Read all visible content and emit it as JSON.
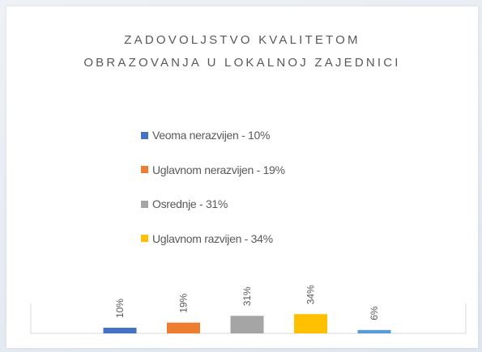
{
  "chart_data": {
    "type": "bar",
    "title": "ZADOVOLJSTVO KVALITETOM OBRAZOVANJA U LOKALNOJ ZAJEDNICI",
    "categories": [
      "Veoma nerazvijen - 10%",
      "Uglavnom nerazvijen - 19%",
      "Osrednje - 31%",
      "Uglavnom razvijen - 34%",
      null
    ],
    "values": [
      10,
      19,
      31,
      34,
      6
    ],
    "value_labels": [
      "10%",
      "19%",
      "31%",
      "34%",
      "6%"
    ],
    "colors": [
      "#4472c4",
      "#ed7d31",
      "#a5a5a5",
      "#ffc000",
      "#5b9bd5"
    ]
  }
}
